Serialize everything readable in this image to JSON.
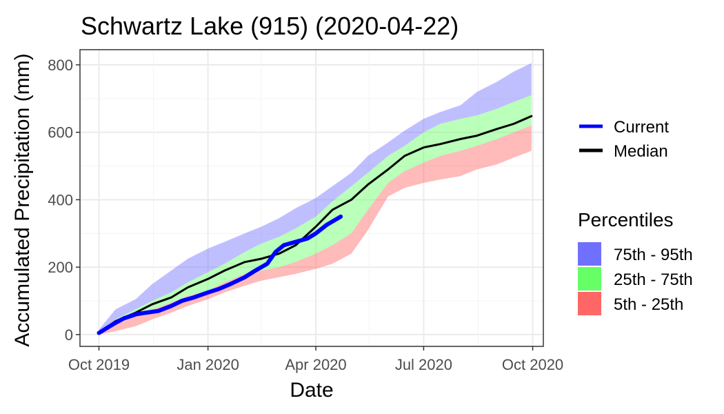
{
  "chart_data": {
    "type": "area",
    "title": "Schwartz Lake (915) (2020-04-22)",
    "xlabel": "Date",
    "ylabel": "Accumulated Precipitation (mm)",
    "x_ticks": [
      "Oct 2019",
      "Jan 2020",
      "Apr 2020",
      "Jul 2020",
      "Oct 2020"
    ],
    "x_tick_dates": [
      "2019-10-01",
      "2020-01-01",
      "2020-04-01",
      "2020-07-01",
      "2020-10-01"
    ],
    "xlim": [
      "2019-09-15",
      "2020-10-10"
    ],
    "y_ticks": [
      0,
      200,
      400,
      600,
      800
    ],
    "ylim": [
      -35,
      845
    ],
    "grid": true,
    "legend_position": "right",
    "legend_lines_title": "",
    "legend_bands_title": "Percentiles",
    "x": [
      "2019-10-01",
      "2019-10-15",
      "2019-11-01",
      "2019-11-15",
      "2019-12-01",
      "2019-12-15",
      "2020-01-01",
      "2020-01-15",
      "2020-02-01",
      "2020-02-15",
      "2020-03-01",
      "2020-03-15",
      "2020-04-01",
      "2020-04-15",
      "2020-05-01",
      "2020-05-15",
      "2020-06-01",
      "2020-06-15",
      "2020-07-01",
      "2020-07-15",
      "2020-08-01",
      "2020-08-15",
      "2020-09-01",
      "2020-09-15",
      "2020-09-30"
    ],
    "bands": [
      {
        "name": "75th - 95th",
        "color": "#7070FF",
        "fill_opacity": 0.45,
        "lower": [
          5,
          45,
          75,
          100,
          125,
          155,
          185,
          210,
          245,
          270,
          290,
          315,
          350,
          395,
          440,
          480,
          530,
          560,
          600,
          625,
          640,
          650,
          670,
          690,
          710
        ],
        "upper": [
          15,
          75,
          105,
          150,
          190,
          225,
          255,
          275,
          300,
          320,
          345,
          375,
          405,
          440,
          480,
          530,
          570,
          605,
          640,
          660,
          680,
          720,
          750,
          780,
          805
        ]
      },
      {
        "name": "25th - 75th",
        "color": "#66FF66",
        "fill_opacity": 0.45,
        "lower": [
          3,
          30,
          55,
          75,
          95,
          115,
          130,
          155,
          180,
          190,
          200,
          215,
          240,
          265,
          300,
          370,
          450,
          485,
          510,
          530,
          545,
          560,
          580,
          600,
          620
        ],
        "upper": [
          5,
          45,
          75,
          100,
          125,
          155,
          185,
          210,
          245,
          270,
          290,
          315,
          350,
          395,
          440,
          480,
          530,
          560,
          600,
          625,
          640,
          650,
          670,
          690,
          710
        ]
      },
      {
        "name": "5th - 25th",
        "color": "#FF6666",
        "fill_opacity": 0.45,
        "lower": [
          0,
          10,
          25,
          45,
          65,
          85,
          105,
          125,
          145,
          160,
          170,
          180,
          195,
          210,
          240,
          310,
          410,
          435,
          450,
          460,
          470,
          490,
          505,
          525,
          545
        ],
        "upper": [
          3,
          30,
          55,
          75,
          95,
          115,
          130,
          155,
          180,
          190,
          200,
          215,
          240,
          265,
          300,
          370,
          450,
          485,
          510,
          530,
          545,
          560,
          580,
          600,
          620
        ]
      }
    ],
    "series": [
      {
        "name": "Median",
        "color": "#000000",
        "stroke_width": 3,
        "x": [
          "2019-10-01",
          "2019-10-15",
          "2019-11-01",
          "2019-11-15",
          "2019-12-01",
          "2019-12-15",
          "2020-01-01",
          "2020-01-15",
          "2020-02-01",
          "2020-02-15",
          "2020-03-01",
          "2020-03-15",
          "2020-04-01",
          "2020-04-15",
          "2020-05-01",
          "2020-05-15",
          "2020-06-01",
          "2020-06-15",
          "2020-07-01",
          "2020-07-15",
          "2020-08-01",
          "2020-08-15",
          "2020-09-01",
          "2020-09-15",
          "2020-09-30"
        ],
        "values": [
          5,
          40,
          65,
          90,
          110,
          140,
          165,
          190,
          215,
          225,
          240,
          265,
          320,
          370,
          400,
          445,
          490,
          530,
          555,
          565,
          580,
          590,
          610,
          625,
          648
        ]
      },
      {
        "name": "Current",
        "color": "#0000FF",
        "stroke_width": 6,
        "x": [
          "2019-10-01",
          "2019-10-08",
          "2019-10-15",
          "2019-10-22",
          "2019-11-01",
          "2019-11-10",
          "2019-11-20",
          "2019-12-01",
          "2019-12-10",
          "2019-12-20",
          "2020-01-01",
          "2020-01-10",
          "2020-01-20",
          "2020-02-01",
          "2020-02-10",
          "2020-02-20",
          "2020-02-27",
          "2020-03-05",
          "2020-03-15",
          "2020-03-25",
          "2020-04-01",
          "2020-04-10",
          "2020-04-22"
        ],
        "values": [
          5,
          20,
          35,
          48,
          60,
          65,
          70,
          85,
          100,
          110,
          125,
          135,
          150,
          170,
          190,
          210,
          245,
          265,
          275,
          285,
          300,
          325,
          350
        ]
      }
    ]
  }
}
